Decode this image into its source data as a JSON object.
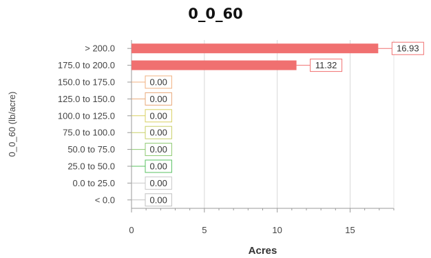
{
  "chart_data": {
    "type": "bar",
    "orientation": "horizontal",
    "title": "0_0_60",
    "xlabel": "Acres",
    "ylabel": "0_0_60 (lb/acre)",
    "xlim": [
      0,
      18
    ],
    "xticks": [
      0,
      5,
      10,
      15
    ],
    "grid": true,
    "categories": [
      "> 200.0",
      "175.0 to 200.0",
      "150.0 to 175.0",
      "125.0 to 150.0",
      "100.0 to 125.0",
      "75.0 to 100.0",
      "50.0 to 75.0",
      "25.0 to 50.0",
      "0.0 to 25.0",
      "< 0.0"
    ],
    "values": [
      16.93,
      11.32,
      0,
      0,
      0,
      0,
      0,
      0,
      0,
      0
    ],
    "data_labels": [
      "16.93",
      "11.32",
      "0.00",
      "0.00",
      "0.00",
      "0.00",
      "0.00",
      "0.00",
      "0.00",
      "0.00"
    ],
    "colors": [
      "#f07070",
      "#f07070",
      "#f0b080",
      "#e8a878",
      "#d8d060",
      "#c8d068",
      "#8cc870",
      "#58c060",
      "#c8c8c8",
      "#c0c0c0"
    ],
    "bar_color": "#f07070"
  }
}
